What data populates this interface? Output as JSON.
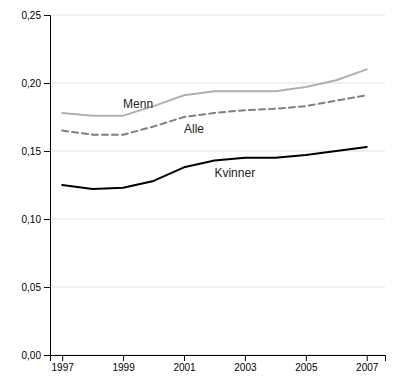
{
  "chart_data": {
    "type": "line",
    "x": [
      1997,
      1998,
      1999,
      2000,
      2001,
      2002,
      2003,
      2004,
      2005,
      2006,
      2007
    ],
    "series": [
      {
        "name": "Menn",
        "color": "#b0b0b0",
        "line_style": "solid",
        "values": [
          0.178,
          0.176,
          0.176,
          0.183,
          0.191,
          0.194,
          0.194,
          0.194,
          0.197,
          0.202,
          0.21
        ]
      },
      {
        "name": "Alle",
        "color": "#808080",
        "line_style": "dashed",
        "values": [
          0.165,
          0.162,
          0.162,
          0.168,
          0.175,
          0.178,
          0.18,
          0.181,
          0.183,
          0.187,
          0.191
        ]
      },
      {
        "name": "Kvinner",
        "color": "#000000",
        "line_style": "solid",
        "values": [
          0.125,
          0.122,
          0.123,
          0.128,
          0.138,
          0.143,
          0.145,
          0.145,
          0.147,
          0.15,
          0.153
        ]
      }
    ],
    "xlim": [
      1996.6,
      2007.6
    ],
    "xticks": [
      1997,
      1999,
      2001,
      2003,
      2005,
      2007
    ],
    "ylim": [
      0.0,
      0.25
    ],
    "yticks": [
      {
        "value": 0.0,
        "label": "0,00"
      },
      {
        "value": 0.05,
        "label": "0,05"
      },
      {
        "value": 0.1,
        "label": "0,10"
      },
      {
        "value": 0.15,
        "label": "0,15"
      },
      {
        "value": 0.2,
        "label": "0,20"
      },
      {
        "value": 0.25,
        "label": "0,25"
      }
    ],
    "grid": true
  }
}
